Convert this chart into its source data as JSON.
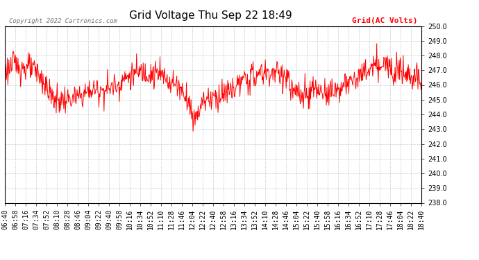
{
  "title": "Grid Voltage Thu Sep 22 18:49",
  "legend_label": "Grid(AC Volts)",
  "copyright": "Copyright 2022 Cartronics.com",
  "ymin": 238.0,
  "ymax": 250.0,
  "yticks": [
    238.0,
    239.0,
    240.0,
    241.0,
    242.0,
    243.0,
    244.0,
    245.0,
    246.0,
    247.0,
    248.0,
    249.0,
    250.0
  ],
  "x_labels": [
    "06:40",
    "06:58",
    "07:16",
    "07:34",
    "07:52",
    "08:10",
    "08:28",
    "08:46",
    "09:04",
    "09:22",
    "09:40",
    "09:58",
    "10:16",
    "10:34",
    "10:52",
    "11:10",
    "11:28",
    "11:46",
    "12:04",
    "12:22",
    "12:40",
    "12:58",
    "13:16",
    "13:34",
    "13:52",
    "14:10",
    "14:28",
    "14:46",
    "15:04",
    "15:22",
    "15:40",
    "15:58",
    "16:16",
    "16:34",
    "16:52",
    "17:10",
    "17:28",
    "17:46",
    "18:04",
    "18:22",
    "18:40"
  ],
  "line_color": "#ff0000",
  "title_fontsize": 11,
  "tick_fontsize": 7,
  "legend_color": "#ff0000",
  "copyright_color": "#777777",
  "grid_color": "#aaaaaa",
  "bg_color": "#ffffff"
}
